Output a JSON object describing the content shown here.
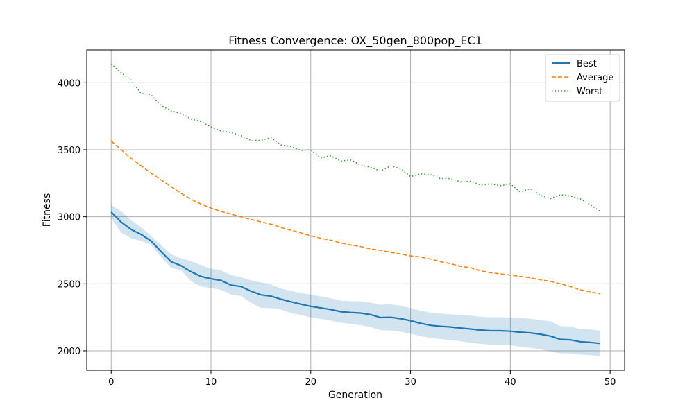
{
  "chart_data": {
    "type": "line",
    "title": "Fitness Convergence: OX_50gen_800pop_EC1",
    "xlabel": "Generation",
    "ylabel": "Fitness",
    "xlim": [
      -2.45,
      51.45
    ],
    "ylim": [
      1855,
      4245
    ],
    "xticks": [
      0,
      10,
      20,
      30,
      40,
      50
    ],
    "yticks": [
      2000,
      2500,
      3000,
      3500,
      4000
    ],
    "grid": true,
    "legend_position": "top-right",
    "colors": {
      "best": "#1f77b4",
      "average": "#ff7f0e",
      "worst": "#2ca02c",
      "band": "#1f77b4"
    },
    "x": [
      0,
      1,
      2,
      3,
      4,
      5,
      6,
      7,
      8,
      9,
      10,
      11,
      12,
      13,
      14,
      15,
      16,
      17,
      18,
      19,
      20,
      21,
      22,
      23,
      24,
      25,
      26,
      27,
      28,
      29,
      30,
      31,
      32,
      33,
      34,
      35,
      36,
      37,
      38,
      39,
      40,
      41,
      42,
      43,
      44,
      45,
      46,
      47,
      48,
      49
    ],
    "series": [
      {
        "name": "Best",
        "style": "solid",
        "values": [
          3035,
          2960,
          2905,
          2868,
          2820,
          2740,
          2665,
          2635,
          2590,
          2555,
          2538,
          2525,
          2490,
          2480,
          2445,
          2418,
          2408,
          2385,
          2366,
          2348,
          2332,
          2320,
          2308,
          2292,
          2286,
          2282,
          2270,
          2248,
          2250,
          2240,
          2225,
          2205,
          2190,
          2183,
          2178,
          2170,
          2163,
          2155,
          2150,
          2150,
          2146,
          2139,
          2134,
          2124,
          2110,
          2085,
          2082,
          2068,
          2063,
          2055
        ]
      },
      {
        "name": "Average",
        "style": "dashed",
        "values": [
          3565,
          3500,
          3435,
          3380,
          3325,
          3275,
          3225,
          3175,
          3130,
          3095,
          3065,
          3040,
          3020,
          3000,
          2980,
          2962,
          2945,
          2920,
          2900,
          2880,
          2858,
          2840,
          2825,
          2805,
          2790,
          2778,
          2760,
          2750,
          2735,
          2722,
          2708,
          2700,
          2685,
          2665,
          2650,
          2630,
          2620,
          2598,
          2583,
          2574,
          2565,
          2555,
          2545,
          2530,
          2518,
          2500,
          2480,
          2455,
          2440,
          2425
        ]
      },
      {
        "name": "Worst",
        "style": "dotted",
        "values": [
          4140,
          4075,
          4020,
          3920,
          3910,
          3830,
          3790,
          3770,
          3730,
          3710,
          3670,
          3640,
          3630,
          3605,
          3570,
          3570,
          3590,
          3535,
          3525,
          3495,
          3500,
          3440,
          3455,
          3415,
          3425,
          3385,
          3370,
          3340,
          3380,
          3360,
          3300,
          3320,
          3315,
          3285,
          3285,
          3260,
          3265,
          3238,
          3245,
          3232,
          3245,
          3185,
          3210,
          3160,
          3135,
          3165,
          3155,
          3135,
          3090,
          3040
        ]
      }
    ],
    "band": {
      "series": "Best",
      "lower": [
        2990,
        2880,
        2840,
        2820,
        2790,
        2700,
        2620,
        2600,
        2520,
        2480,
        2468,
        2455,
        2420,
        2410,
        2360,
        2320,
        2318,
        2308,
        2282,
        2268,
        2250,
        2238,
        2225,
        2210,
        2200,
        2192,
        2178,
        2154,
        2152,
        2142,
        2128,
        2110,
        2095,
        2088,
        2080,
        2072,
        2060,
        2052,
        2045,
        2045,
        2041,
        2030,
        2022,
        2012,
        1995,
        1982,
        1980,
        1972,
        1968,
        1962
      ],
      "upper": [
        3090,
        3040,
        2975,
        2920,
        2858,
        2790,
        2720,
        2690,
        2670,
        2640,
        2612,
        2600,
        2565,
        2550,
        2525,
        2510,
        2495,
        2465,
        2448,
        2432,
        2420,
        2406,
        2392,
        2375,
        2370,
        2368,
        2360,
        2344,
        2348,
        2336,
        2320,
        2300,
        2285,
        2278,
        2272,
        2265,
        2262,
        2255,
        2250,
        2250,
        2248,
        2245,
        2240,
        2230,
        2220,
        2185,
        2182,
        2162,
        2160,
        2150
      ]
    }
  }
}
